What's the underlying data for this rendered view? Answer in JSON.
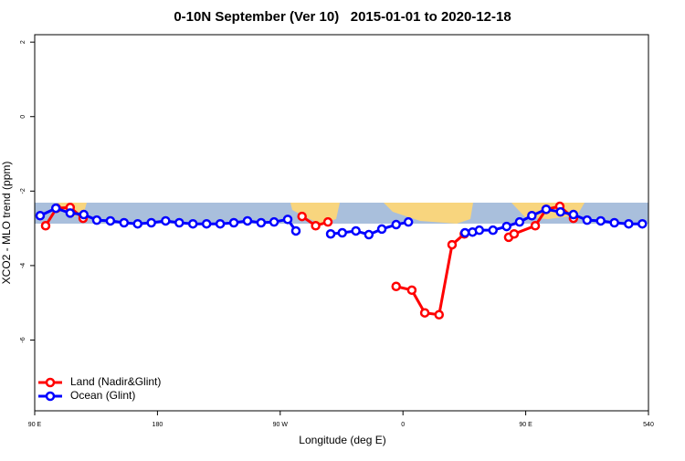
{
  "chart_data": {
    "type": "line",
    "title": "0-10N September (Ver 10)   2015-01-01 to 2020-12-18",
    "x_label": "Longitude (deg E)",
    "y_label": "XCO2 - MLO trend (ppm)",
    "xlim": [
      90,
      540
    ],
    "xticks": [
      {
        "value": 90,
        "label": "90 E"
      },
      180,
      {
        "value": 270,
        "label": "90 W"
      },
      {
        "value": 360,
        "label": "0"
      },
      {
        "value": 450,
        "label": "90 E"
      },
      540
    ],
    "ylim": [
      -7.9,
      2.2
    ],
    "yticks": [
      -6,
      -4,
      -2,
      0,
      2
    ],
    "legend": "bottomleft",
    "series": [
      {
        "name": "Land (Nadir&Glint)",
        "color": "#ff0000",
        "x": [
          98,
          106,
          116,
          125.5,
          null,
          286,
          296,
          305,
          null,
          355,
          366.5,
          376,
          386.5,
          396,
          405,
          null,
          437.5,
          441.5,
          457,
          465,
          475,
          485
        ],
        "values": [
          -2.93,
          -2.46,
          -2.44,
          -2.73,
          null,
          -2.68,
          -2.93,
          -2.83,
          null,
          -4.56,
          -4.66,
          -5.27,
          -5.32,
          -3.44,
          -3.15,
          null,
          -3.24,
          -3.15,
          -2.93,
          -2.49,
          -2.41,
          -2.73
        ]
      },
      {
        "name": "Ocean (Glint)",
        "color": "#0000ff",
        "x": [
          94,
          105.5,
          116,
          126,
          135.5,
          145.5,
          155.5,
          165.5,
          175.5,
          186,
          196,
          206,
          216,
          226,
          236,
          246,
          256,
          265.5,
          275.5,
          281.5,
          null,
          307,
          315.5,
          325.5,
          335,
          344.5,
          355,
          364,
          null,
          405.5,
          411,
          416,
          426,
          436,
          445.5,
          454.5,
          465,
          475.5,
          485,
          495,
          505,
          515,
          525.5,
          535.5
        ],
        "values": [
          -2.66,
          -2.46,
          -2.59,
          -2.63,
          -2.78,
          -2.8,
          -2.85,
          -2.88,
          -2.85,
          -2.8,
          -2.85,
          -2.88,
          -2.88,
          -2.88,
          -2.85,
          -2.8,
          -2.85,
          -2.83,
          -2.76,
          -3.07,
          null,
          -3.15,
          -3.12,
          -3.07,
          -3.17,
          -3.02,
          -2.9,
          -2.83,
          null,
          -3.12,
          -3.1,
          -3.05,
          -3.05,
          -2.95,
          -2.83,
          -2.66,
          -2.49,
          -2.56,
          -2.63,
          -2.78,
          -2.8,
          -2.85,
          -2.88,
          -2.88
        ]
      }
    ]
  }
}
